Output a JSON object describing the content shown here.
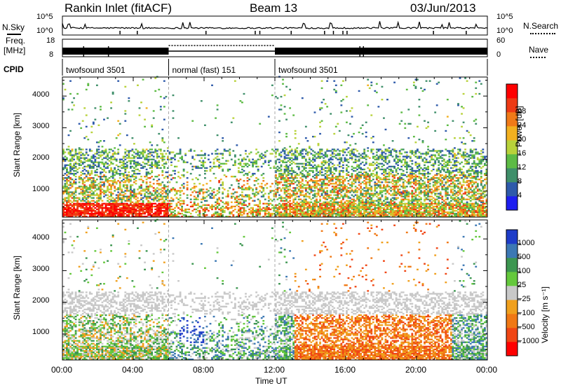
{
  "header": {
    "station": "Rankin Inlet (fitACF)",
    "beam": "Beam 13",
    "date": "03/Jun/2013"
  },
  "noise_panel": {
    "left_label": "N.Sky",
    "right_label": "N.Search",
    "left_ticks": [
      "10^5",
      "10^0"
    ],
    "right_ticks": [
      "10^5",
      "10^0"
    ]
  },
  "freq_panel": {
    "left_label_line1": "Freq.",
    "left_label_line2": "[MHz]",
    "right_label": "Nave",
    "left_ticks": [
      "18",
      "8"
    ],
    "right_ticks": [
      "60",
      "0"
    ]
  },
  "cpid_panel": {
    "label": "CPID",
    "segments": [
      {
        "name": "twofsound 3501",
        "start_hr": 0,
        "end_hr": 6
      },
      {
        "name": "normal (fast) 151",
        "start_hr": 6,
        "end_hr": 12
      },
      {
        "name": "twofsound 3501",
        "start_hr": 12,
        "end_hr": 24
      }
    ]
  },
  "chart_data": [
    {
      "type": "heatmap",
      "title": "",
      "xlabel": "",
      "ylabel": "Slant Range [km]",
      "xlim": [
        0,
        24
      ],
      "ylim": [
        180,
        4600
      ],
      "yticks": [
        "1000",
        "2000",
        "3000",
        "4000"
      ],
      "colorbar_label": "Power [dB]",
      "colorbar_ticks": [
        "4",
        "8",
        "12",
        "16",
        "20",
        "24",
        "28"
      ],
      "colorbar_colors": [
        "#1e1ef0",
        "#2e5aaa",
        "#3f8f6a",
        "#5dbb45",
        "#b8d23a",
        "#f2b020",
        "#f07a18",
        "#ee3a14",
        "#ff0000"
      ],
      "color_range": [
        0,
        32
      ]
    },
    {
      "type": "heatmap",
      "title": "",
      "xlabel": "Time UT",
      "ylabel": "Slant Range [km]",
      "xlim": [
        0,
        24
      ],
      "ylim": [
        180,
        4600
      ],
      "yticks": [
        "1000",
        "2000",
        "3000",
        "4000"
      ],
      "xticks": [
        "00:00",
        "04:00",
        "08:00",
        "12:00",
        "16:00",
        "20:00",
        "00:00"
      ],
      "colorbar_label": "Velocity [m s⁻¹]",
      "colorbar_ticks": [
        "1000",
        "500",
        "100",
        "25",
        "−25",
        "−100",
        "−500",
        "−1000"
      ],
      "colorbar_colors": [
        "#1e3cc8",
        "#3c78b4",
        "#3c9650",
        "#64c83c",
        "#c8c8c8",
        "#f0a01e",
        "#f07814",
        "#f04614",
        "#ff0000"
      ]
    }
  ]
}
